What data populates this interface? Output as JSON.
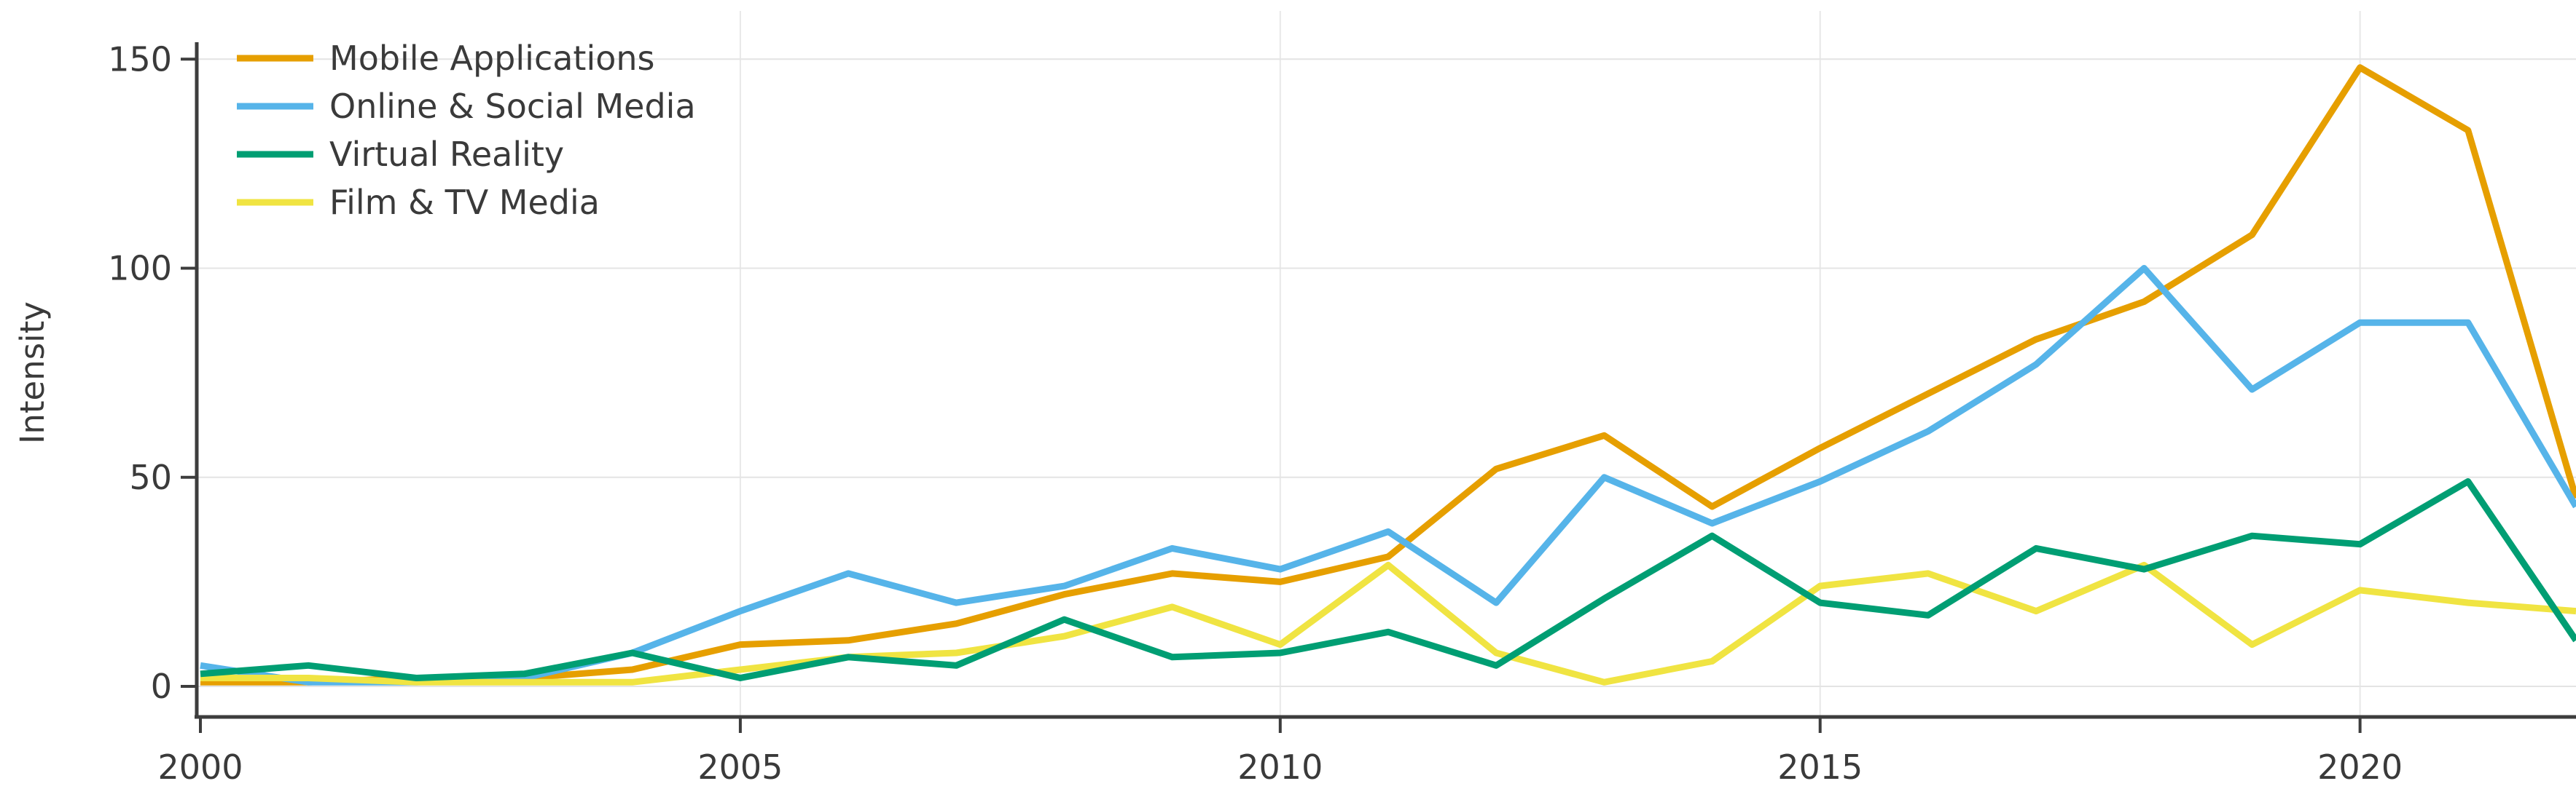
{
  "chart_data": {
    "type": "line",
    "title": "",
    "xlabel": "",
    "ylabel": "Intensity",
    "x": [
      2000,
      2001,
      2002,
      2003,
      2004,
      2005,
      2006,
      2007,
      2008,
      2009,
      2010,
      2011,
      2012,
      2013,
      2014,
      2015,
      2016,
      2017,
      2018,
      2019,
      2020,
      2021,
      2022
    ],
    "series": [
      {
        "name": "Mobile Applications",
        "color": "#E69F00",
        "values": [
          1,
          1,
          2,
          2,
          4,
          10,
          11,
          15,
          22,
          27,
          25,
          31,
          52,
          60,
          43,
          57,
          70,
          83,
          92,
          108,
          148,
          133,
          45
        ]
      },
      {
        "name": "Online & Social Media",
        "color": "#56B4E9",
        "values": [
          5,
          1,
          1,
          2,
          8,
          18,
          27,
          20,
          24,
          33,
          28,
          37,
          20,
          50,
          39,
          49,
          61,
          77,
          100,
          71,
          87,
          87,
          43
        ]
      },
      {
        "name": "Virtual Reality",
        "color": "#009E73",
        "values": [
          3,
          5,
          2,
          3,
          8,
          2,
          7,
          5,
          16,
          7,
          8,
          13,
          5,
          21,
          36,
          20,
          17,
          33,
          28,
          36,
          34,
          49,
          11
        ]
      },
      {
        "name": "Film & TV Media",
        "color": "#F0E442",
        "values": [
          2,
          2,
          1,
          1,
          1,
          4,
          7,
          8,
          12,
          19,
          10,
          29,
          8,
          1,
          6,
          24,
          27,
          18,
          29,
          10,
          23,
          20,
          18
        ]
      }
    ],
    "xticks": [
      2000,
      2005,
      2010,
      2015,
      2020
    ],
    "yticks": [
      0,
      50,
      100,
      150
    ],
    "xlim": [
      2000,
      2022
    ],
    "ylim": [
      0,
      150
    ],
    "grid": true,
    "legend_position": "top-left",
    "draw_order": [
      0,
      1,
      3,
      2
    ],
    "colors": {
      "axis": "#3d3d3d",
      "grid_h": "#e4e4e4",
      "grid_v": "#e8e8e8",
      "tick_label": "#3a3a3a",
      "axis_title": "#2e2e2e",
      "background": "#ffffff"
    }
  }
}
